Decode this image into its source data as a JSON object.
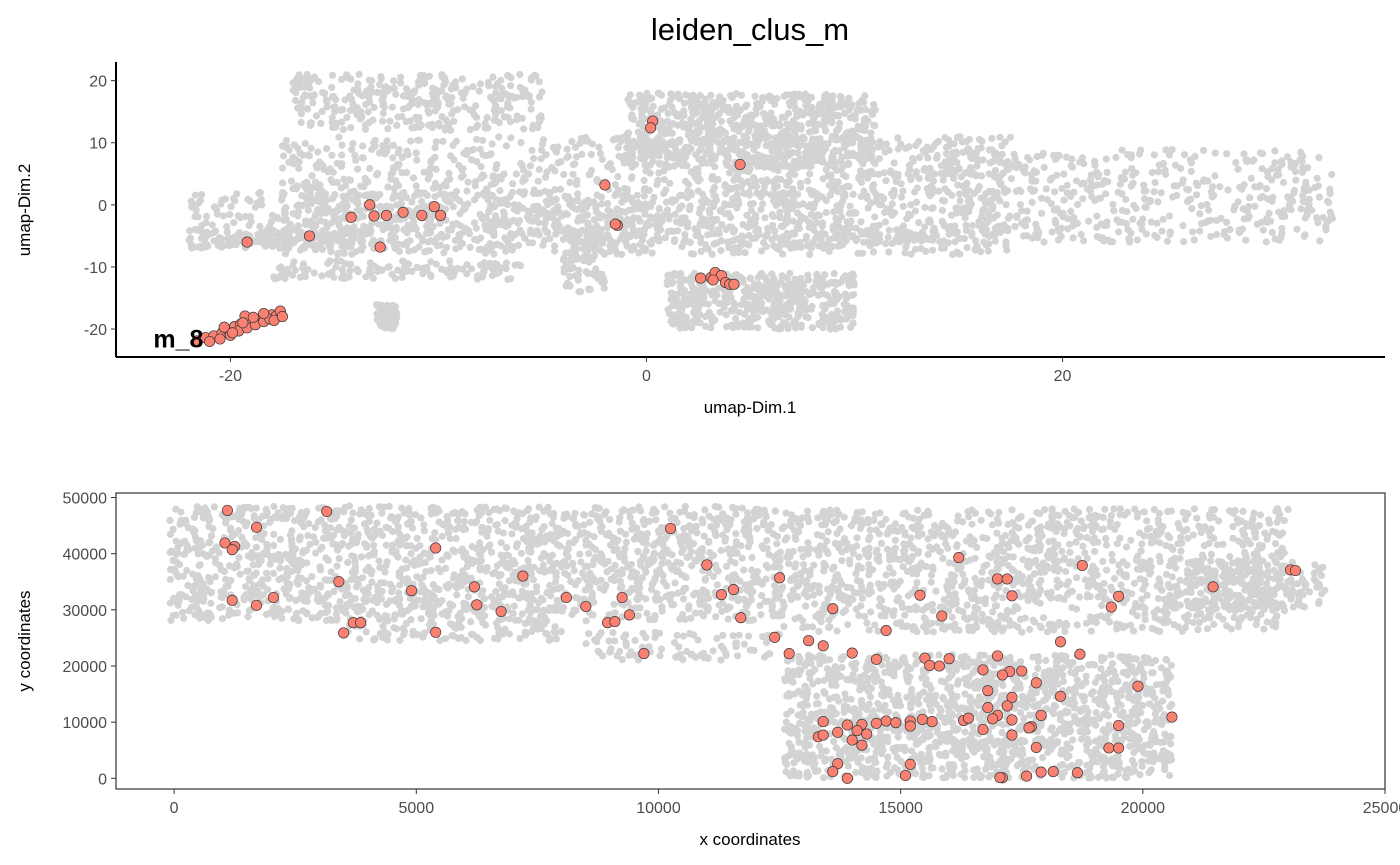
{
  "title": "leiden_clus_m",
  "colors": {
    "background_cells": "#d3d3d3",
    "highlight_fill": "#fa8072",
    "highlight_stroke": "#3a3a3a"
  },
  "chart_data": [
    {
      "type": "scatter",
      "name": "umap",
      "xlabel": "umap-Dim.1",
      "ylabel": "umap-Dim.2",
      "xlim": [
        -25.5,
        35.5
      ],
      "ylim": [
        -24.5,
        23
      ],
      "xticks": [
        -20,
        0,
        20
      ],
      "yticks": [
        -20,
        -10,
        0,
        10,
        20
      ],
      "grid": false,
      "cluster_label": {
        "text": "m_8",
        "x": -22.5,
        "y": -21.5
      },
      "background_regions": [
        {
          "x": [
            -17.5,
            17.5
          ],
          "y": [
            -8,
            11
          ],
          "n": 1400
        },
        {
          "x": [
            -22,
            10
          ],
          "y": [
            -7,
            2
          ],
          "n": 600
        },
        {
          "x": [
            -17,
            -5
          ],
          "y": [
            12,
            21
          ],
          "n": 300
        },
        {
          "x": [
            -22,
            -14
          ],
          "y": [
            -7,
            -4
          ],
          "n": 120
        },
        {
          "x": [
            -18,
            -6
          ],
          "y": [
            -12,
            -9
          ],
          "n": 120
        },
        {
          "x": [
            -13,
            -12
          ],
          "y": [
            -20,
            -16
          ],
          "n": 80
        },
        {
          "x": [
            -1,
            11
          ],
          "y": [
            6,
            18
          ],
          "n": 700
        },
        {
          "x": [
            1,
            10
          ],
          "y": [
            -20,
            -11
          ],
          "n": 450
        },
        {
          "x": [
            -4,
            -2
          ],
          "y": [
            -14,
            -4
          ],
          "n": 80
        },
        {
          "x": [
            14,
            33
          ],
          "y": [
            -6,
            9
          ],
          "n": 500
        },
        {
          "x": [
            9,
            14
          ],
          "y": [
            -6,
            -4
          ],
          "n": 50
        }
      ],
      "highlight_points": [
        [
          0.3,
          13.5
        ],
        [
          0.2,
          12.4
        ],
        [
          4.5,
          6.5
        ],
        [
          -2,
          3.2
        ],
        [
          -1.4,
          -3.3
        ],
        [
          -1.5,
          -3.1
        ],
        [
          -10.2,
          -0.3
        ],
        [
          -9.9,
          -1.7
        ],
        [
          -10.8,
          -1.7
        ],
        [
          -11.7,
          -1.2
        ],
        [
          -12.5,
          -1.7
        ],
        [
          -13.1,
          -1.8
        ],
        [
          -13.3,
          0.0
        ],
        [
          -14.2,
          -2.0
        ],
        [
          -12.8,
          -6.8
        ],
        [
          -16.2,
          -5.0
        ],
        [
          -19.2,
          -6.0
        ],
        [
          2.6,
          -11.8
        ],
        [
          3.1,
          -11.7
        ],
        [
          3.3,
          -10.9
        ],
        [
          3.6,
          -11.4
        ],
        [
          3.2,
          -12.1
        ],
        [
          3.8,
          -12.5
        ],
        [
          4.0,
          -12.8
        ],
        [
          4.2,
          -12.8
        ],
        [
          -21.6,
          -21.9
        ],
        [
          -21.2,
          -21.4
        ],
        [
          -20.8,
          -21.1
        ],
        [
          -20.4,
          -20.6
        ],
        [
          -20.1,
          -20.2
        ],
        [
          -19.8,
          -19.6
        ],
        [
          -19.5,
          -19.2
        ],
        [
          -19.1,
          -18.9
        ],
        [
          -18.7,
          -18.5
        ],
        [
          -18.3,
          -18.0
        ],
        [
          -18.0,
          -17.7
        ],
        [
          -17.6,
          -17.4
        ],
        [
          -21.0,
          -22.0
        ],
        [
          -20.5,
          -21.6
        ],
        [
          -20.0,
          -21.0
        ],
        [
          -19.6,
          -20.3
        ],
        [
          -19.2,
          -19.8
        ],
        [
          -18.8,
          -19.3
        ],
        [
          -18.4,
          -18.8
        ],
        [
          -18.1,
          -18.4
        ],
        [
          -17.8,
          -17.9
        ],
        [
          -17.6,
          -17.1
        ],
        [
          -19.3,
          -17.9
        ],
        [
          -18.4,
          -17.5
        ],
        [
          -20.3,
          -19.7
        ],
        [
          -19.9,
          -20.6
        ],
        [
          -19.4,
          -19.0
        ],
        [
          -18.9,
          -18.1
        ],
        [
          -17.9,
          -18.6
        ],
        [
          -17.5,
          -18.0
        ]
      ]
    },
    {
      "type": "scatter",
      "name": "spatial",
      "xlabel": "x coordinates",
      "ylabel": "y coordinates",
      "xlim": [
        -1200,
        25000
      ],
      "ylim": [
        -1900,
        50800
      ],
      "xticks": [
        0,
        5000,
        10000,
        15000,
        20000,
        25000
      ],
      "yticks": [
        0,
        10000,
        20000,
        30000,
        40000,
        50000
      ],
      "grid": false,
      "background_regions": [
        {
          "x": [
            -100,
            12500
          ],
          "y": [
            28000,
            48500
          ],
          "n": 1700
        },
        {
          "x": [
            12500,
            23000
          ],
          "y": [
            26000,
            48000
          ],
          "n": 1300
        },
        {
          "x": [
            3500,
            8000
          ],
          "y": [
            24500,
            28000
          ],
          "n": 90
        },
        {
          "x": [
            8500,
            12500
          ],
          "y": [
            21000,
            26000
          ],
          "n": 90
        },
        {
          "x": [
            12600,
            20600
          ],
          "y": [
            0,
            22000
          ],
          "n": 1500
        },
        {
          "x": [
            20600,
            23800
          ],
          "y": [
            30000,
            38500
          ],
          "n": 180
        }
      ],
      "highlight_points": [
        [
          1100,
          47700
        ],
        [
          3150,
          47500
        ],
        [
          1700,
          44700
        ],
        [
          10250,
          44500
        ],
        [
          1050,
          41900
        ],
        [
          1250,
          41300
        ],
        [
          1200,
          40700
        ],
        [
          5400,
          41000
        ],
        [
          16200,
          39300
        ],
        [
          11000,
          38000
        ],
        [
          18750,
          37900
        ],
        [
          23050,
          37100
        ],
        [
          23150,
          37000
        ],
        [
          7200,
          36000
        ],
        [
          12500,
          35700
        ],
        [
          17000,
          35500
        ],
        [
          17200,
          35500
        ],
        [
          3400,
          35000
        ],
        [
          6200,
          34100
        ],
        [
          11550,
          33600
        ],
        [
          21450,
          34100
        ],
        [
          4900,
          33400
        ],
        [
          1200,
          31700
        ],
        [
          2050,
          32200
        ],
        [
          8100,
          32200
        ],
        [
          9250,
          32200
        ],
        [
          11300,
          32700
        ],
        [
          15400,
          32600
        ],
        [
          17300,
          32500
        ],
        [
          19500,
          32400
        ],
        [
          1700,
          30800
        ],
        [
          6250,
          30900
        ],
        [
          8500,
          30600
        ],
        [
          19350,
          30500
        ],
        [
          6750,
          29700
        ],
        [
          9400,
          29100
        ],
        [
          11700,
          28600
        ],
        [
          13600,
          30200
        ],
        [
          15850,
          28900
        ],
        [
          8950,
          27700
        ],
        [
          9100,
          27900
        ],
        [
          3700,
          27700
        ],
        [
          3850,
          27700
        ],
        [
          3500,
          25900
        ],
        [
          5400,
          26000
        ],
        [
          12400,
          25100
        ],
        [
          13100,
          24500
        ],
        [
          13400,
          23600
        ],
        [
          14700,
          26300
        ],
        [
          18300,
          24300
        ],
        [
          9700,
          22200
        ],
        [
          12700,
          22200
        ],
        [
          14000,
          22300
        ],
        [
          14500,
          21200
        ],
        [
          15500,
          21400
        ],
        [
          16000,
          21300
        ],
        [
          17000,
          21800
        ],
        [
          18700,
          22100
        ],
        [
          15600,
          20100
        ],
        [
          15800,
          20000
        ],
        [
          16700,
          19300
        ],
        [
          17250,
          19000
        ],
        [
          17500,
          19100
        ],
        [
          17100,
          18400
        ],
        [
          17800,
          17000
        ],
        [
          16800,
          15600
        ],
        [
          17300,
          14400
        ],
        [
          18300,
          14600
        ],
        [
          19900,
          16400
        ],
        [
          17200,
          12900
        ],
        [
          16800,
          12600
        ],
        [
          17900,
          11200
        ],
        [
          17000,
          11200
        ],
        [
          17300,
          10400
        ],
        [
          16900,
          10600
        ],
        [
          20600,
          10900
        ],
        [
          19500,
          9400
        ],
        [
          15200,
          10200
        ],
        [
          15450,
          10500
        ],
        [
          16300,
          10300
        ],
        [
          17700,
          9200
        ],
        [
          17650,
          9000
        ],
        [
          13400,
          10100
        ],
        [
          14700,
          10200
        ],
        [
          14500,
          9800
        ],
        [
          14200,
          9600
        ],
        [
          13900,
          9500
        ],
        [
          14100,
          8500
        ],
        [
          13700,
          8200
        ],
        [
          13300,
          7400
        ],
        [
          13400,
          7700
        ],
        [
          14300,
          7900
        ],
        [
          14000,
          6800
        ],
        [
          14200,
          5900
        ],
        [
          15200,
          9300
        ],
        [
          16700,
          8700
        ],
        [
          17300,
          7700
        ],
        [
          17800,
          5500
        ],
        [
          19300,
          5400
        ],
        [
          19500,
          5400
        ],
        [
          13700,
          2600
        ],
        [
          13600,
          1200
        ],
        [
          13900,
          0
        ],
        [
          15100,
          500
        ],
        [
          15200,
          2500
        ],
        [
          17100,
          100
        ],
        [
          17050,
          150
        ],
        [
          17600,
          400
        ],
        [
          17900,
          1100
        ],
        [
          18150,
          1200
        ],
        [
          18650,
          1000
        ],
        [
          15650,
          10100
        ],
        [
          16400,
          10700
        ],
        [
          14900,
          9900
        ]
      ]
    }
  ]
}
